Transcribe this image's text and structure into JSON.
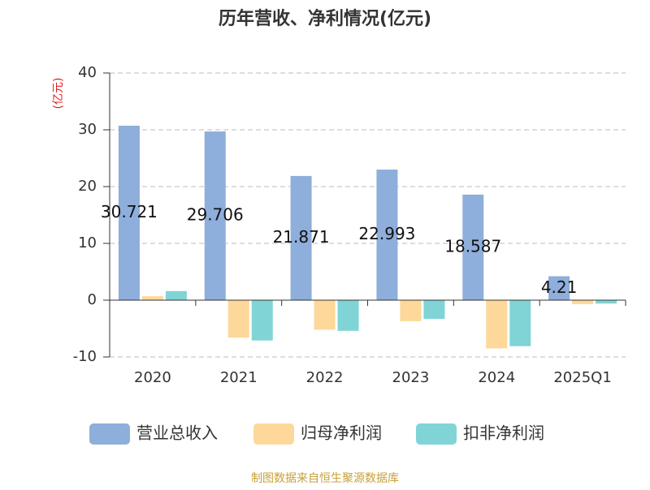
{
  "chart_data": {
    "type": "bar",
    "title": "历年营收、净利情况(亿元)",
    "y_label": "(亿元)",
    "categories": [
      "2020",
      "2021",
      "2022",
      "2023",
      "2024",
      "2025Q1"
    ],
    "series": [
      {
        "name": "营业总收入",
        "color": "#8eaedb",
        "values": [
          30.721,
          29.706,
          21.871,
          22.993,
          18.587,
          4.21
        ]
      },
      {
        "name": "归母净利润",
        "color": "#fdd89a",
        "values": [
          0.7,
          -6.6,
          -5.2,
          -3.7,
          -8.5,
          -0.7
        ]
      },
      {
        "name": "扣非净利润",
        "color": "#80d4d6",
        "values": [
          1.6,
          -7.1,
          -5.4,
          -3.3,
          -8.1,
          -0.6
        ]
      }
    ],
    "ylim": [
      -10,
      40
    ],
    "yticks": [
      -10,
      0,
      10,
      20,
      30,
      40
    ],
    "grid": true,
    "source": "制图数据来自恒生聚源数据库"
  }
}
